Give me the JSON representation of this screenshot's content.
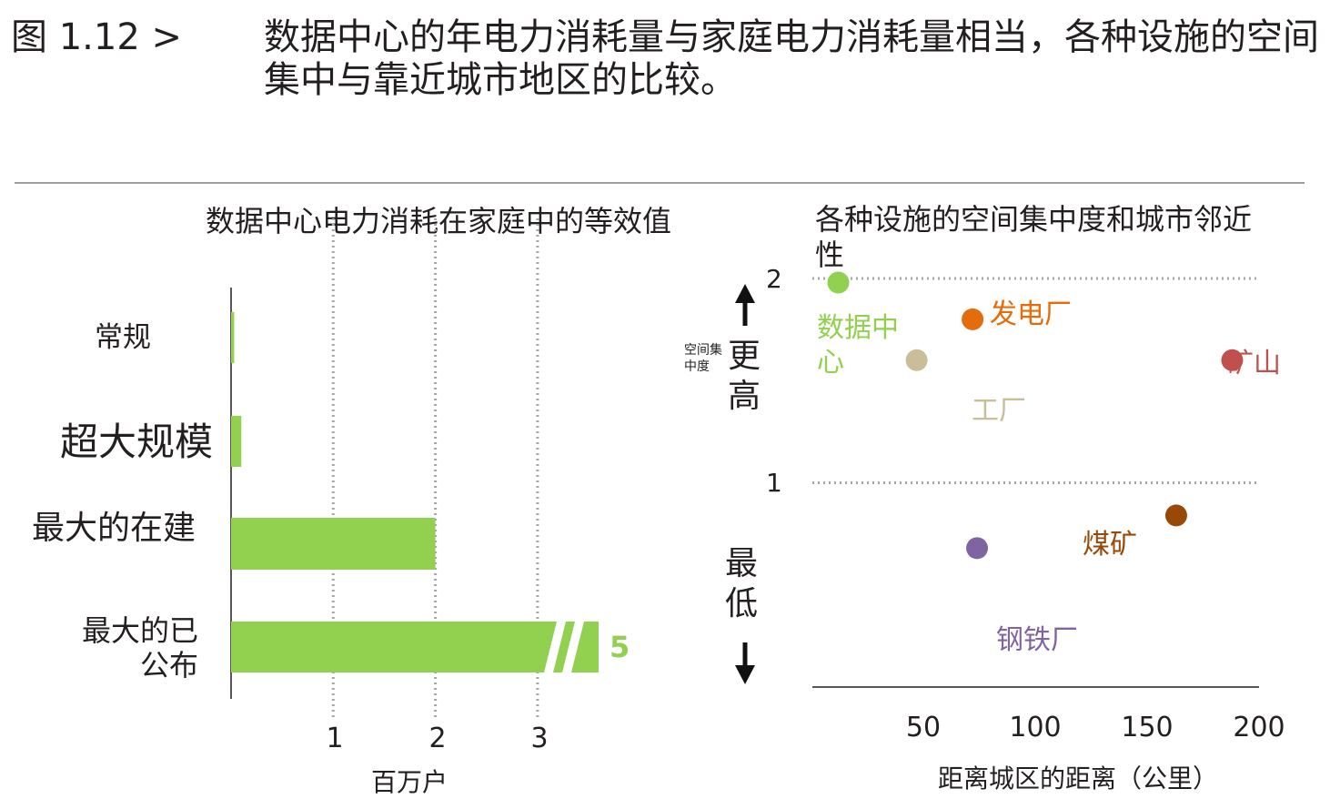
{
  "figure": {
    "label": "图 1.12 >",
    "title": "数据中心的年电力消耗量与家庭电力消耗量相当，各种设施的空间集中与靠近城市地区的比较。"
  },
  "colors": {
    "green": "#92d050",
    "text": "#231f20",
    "grid": "#a6a6a6"
  },
  "chart_data": [
    {
      "type": "bar",
      "orientation": "horizontal",
      "title": "数据中心电力消耗在家庭中的等效值",
      "categories": [
        "常规",
        "超大规模",
        "最大的在建",
        "最大的已公布"
      ],
      "values": [
        0.03,
        0.1,
        2,
        5
      ],
      "value_labels": [
        "",
        "",
        "",
        "5"
      ],
      "axis_break_on": "最大的已公布",
      "xlabel": "百万户",
      "xticks": [
        "1",
        "2",
        "3"
      ],
      "xlim": [
        0,
        3.7
      ],
      "grid": "vertical dotted",
      "color": "#92d050"
    },
    {
      "type": "scatter",
      "title": "各种设施的空间集中度和城市邻近性",
      "xlabel": "距离城区的距离（公里）",
      "xticks": [
        "50",
        "100",
        "150",
        "200"
      ],
      "xlim": [
        0,
        200
      ],
      "ylabel": "空间集中度",
      "yticks": [
        "1",
        "2"
      ],
      "ylim": [
        0,
        2
      ],
      "y_arrow_top": "更高",
      "y_arrow_bottom": "最低",
      "points": [
        {
          "label": "数据中心",
          "x": 12,
          "y": 1.98,
          "color": "#92d050"
        },
        {
          "label": "发电厂",
          "x": 72,
          "y": 1.8,
          "color": "#e46c0a"
        },
        {
          "label": "工厂",
          "x": 47,
          "y": 1.6,
          "color": "#c9be98"
        },
        {
          "label": "矿山",
          "x": 188,
          "y": 1.6,
          "color": "#c0504d"
        },
        {
          "label": "煤矿",
          "x": 163,
          "y": 0.84,
          "color": "#984807"
        },
        {
          "label": "钢铁厂",
          "x": 74,
          "y": 0.68,
          "color": "#8064a2"
        }
      ]
    }
  ]
}
